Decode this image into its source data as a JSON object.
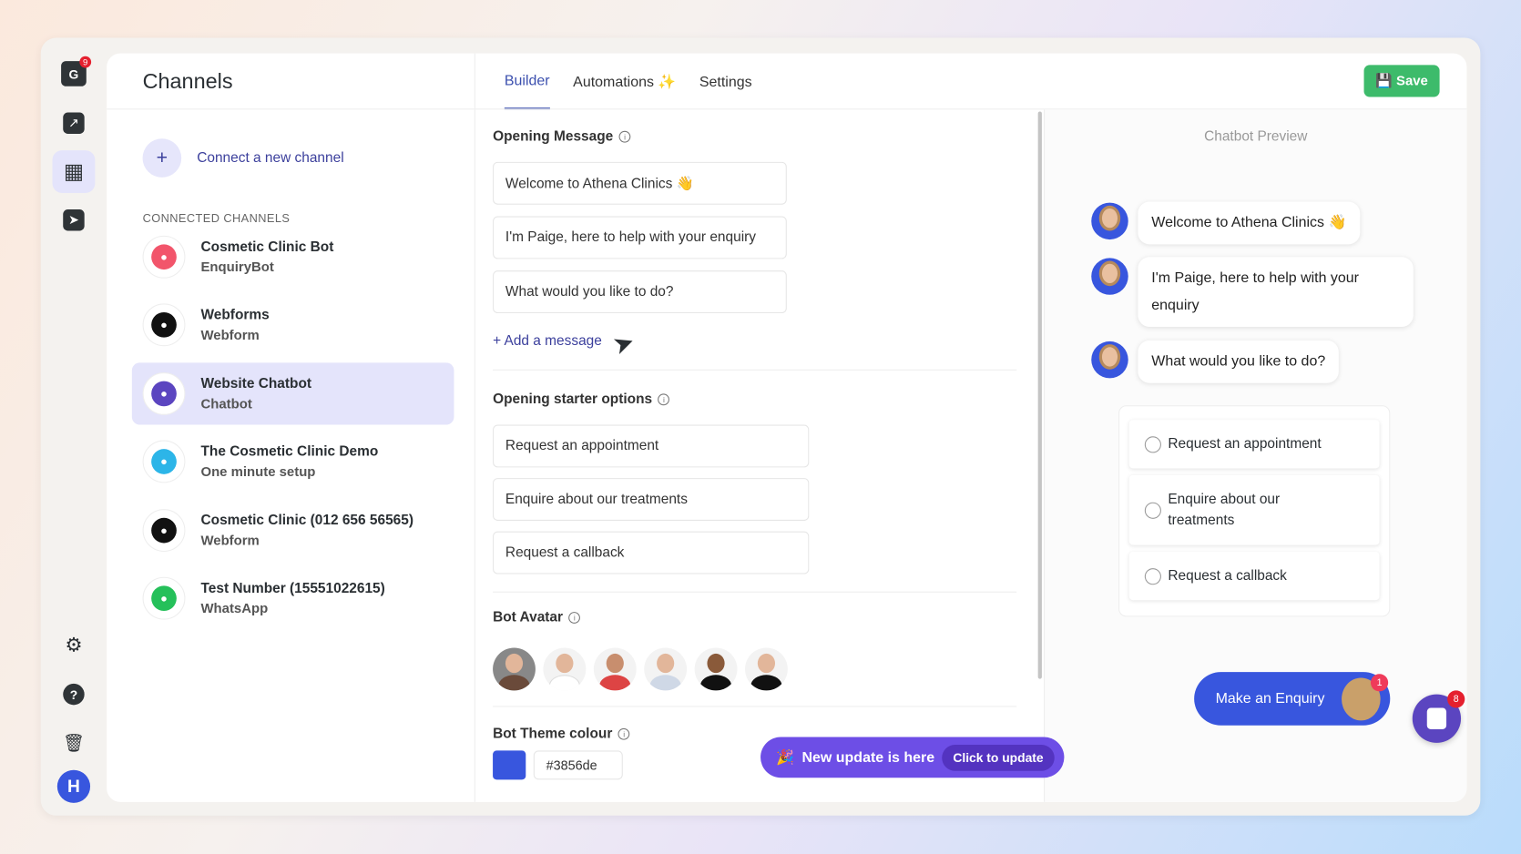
{
  "rail": {
    "logo_badge": "9",
    "avatar_initial": "H",
    "icons": [
      "logo-icon",
      "analytics-icon",
      "channels-icon",
      "send-icon",
      "settings-icon",
      "help-icon",
      "trash-icon"
    ]
  },
  "channels": {
    "title": "Channels",
    "connect_label": "Connect a new channel",
    "section_label": "CONNECTED CHANNELS",
    "items": [
      {
        "name": "Cosmetic Clinic Bot",
        "type": "EnquiryBot",
        "color": "#f2556b"
      },
      {
        "name": "Webforms",
        "type": "Webform",
        "color": "#111111"
      },
      {
        "name": "Website Chatbot",
        "type": "Chatbot",
        "color": "#5b45c0",
        "selected": true
      },
      {
        "name": "The Cosmetic Clinic Demo",
        "type": "One minute setup",
        "color": "#2cb5e8"
      },
      {
        "name": "Cosmetic Clinic (012 656 56565)",
        "type": "Webform",
        "color": "#111111"
      },
      {
        "name": "Test Number (15551022615)",
        "type": "WhatsApp",
        "color": "#25c05a"
      }
    ]
  },
  "tabs": [
    {
      "label": "Builder",
      "active": true
    },
    {
      "label": "Automations ✨"
    },
    {
      "label": "Settings"
    }
  ],
  "save_label": "Save",
  "builder": {
    "opening_message_label": "Opening Message",
    "messages": [
      "Welcome to Athena Clinics 👋",
      "I'm Paige, here to help with your enquiry",
      "What would you like to do?"
    ],
    "add_message_label": "Add a message",
    "starter_label": "Opening starter options",
    "starters": [
      "Request an appointment",
      "Enquire about our treatments",
      "Request a callback"
    ],
    "avatar_label": "Bot Avatar",
    "theme_label": "Bot Theme colour",
    "theme_colour": "#3856de"
  },
  "preview": {
    "title": "Chatbot Preview",
    "messages": [
      "Welcome to Athena Clinics 👋",
      "I'm Paige, here to help with your enquiry",
      "What would you like to do?"
    ],
    "options": [
      "Request an appointment",
      "Enquire about our treatments",
      "Request a callback"
    ],
    "enquiry_label": "Make an Enquiry",
    "enquiry_badge": "1",
    "launcher_badge": "8"
  },
  "update_banner": {
    "text": "New update is here",
    "button": "Click to update"
  }
}
